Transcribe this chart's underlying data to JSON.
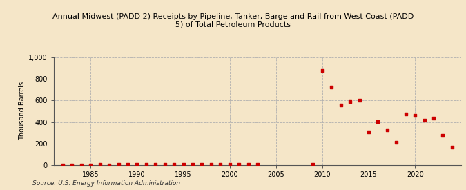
{
  "title": "Annual Midwest (PADD 2) Receipts by Pipeline, Tanker, Barge and Rail from West Coast (PADD\n5) of Total Petroleum Products",
  "ylabel": "Thousand Barrels",
  "source": "Source: U.S. Energy Information Administration",
  "background_color": "#f5e6c8",
  "plot_bg_color": "#f5e6c8",
  "marker_color": "#cc0000",
  "xlim": [
    1981,
    2025
  ],
  "ylim": [
    0,
    1000
  ],
  "yticks": [
    0,
    200,
    400,
    600,
    800,
    1000
  ],
  "ytick_labels": [
    "0",
    "200",
    "400",
    "600",
    "800",
    "1,000"
  ],
  "xticks": [
    1985,
    1990,
    1995,
    2000,
    2005,
    2010,
    2015,
    2020
  ],
  "data": {
    "1982": 3,
    "1983": 3,
    "1984": 3,
    "1985": 4,
    "1986": 5,
    "1987": 4,
    "1988": 5,
    "1989": 5,
    "1990": 8,
    "1991": 5,
    "1992": 5,
    "1993": 5,
    "1994": 5,
    "1995": 5,
    "1996": 5,
    "1997": 5,
    "1998": 5,
    "1999": 5,
    "2000": 5,
    "2001": 10,
    "2002": 10,
    "2003": 8,
    "2009": 10,
    "2010": 875,
    "2011": 720,
    "2012": 555,
    "2013": 590,
    "2014": 600,
    "2015": 310,
    "2016": 405,
    "2017": 325,
    "2018": 210,
    "2019": 475,
    "2020": 460,
    "2021": 415,
    "2022": 435,
    "2023": 275,
    "2024": 165
  }
}
